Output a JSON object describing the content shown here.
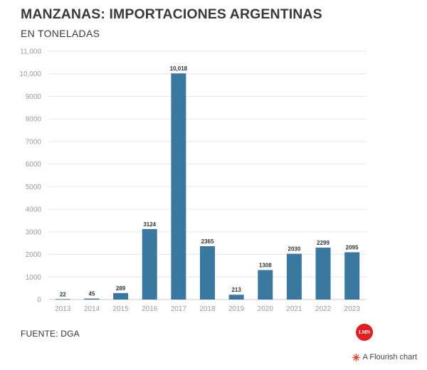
{
  "header": {
    "title": "MANZANAS: IMPORTACIONES ARGENTINAS",
    "subtitle": "EN TONELADAS"
  },
  "footer": {
    "source": "FUENTE: DGA",
    "logo_text": "LMN",
    "flourish_label": "A Flourish chart"
  },
  "colors": {
    "bar": "#3a78a0",
    "logo": "#e02020",
    "flourish_icon": "#e8412c"
  },
  "chart_data": {
    "type": "bar",
    "title": "MANZANAS: IMPORTACIONES ARGENTINAS",
    "subtitle": "EN TONELADAS",
    "xlabel": "",
    "ylabel": "",
    "categories": [
      "2013",
      "2014",
      "2015",
      "2016",
      "2017",
      "2018",
      "2019",
      "2020",
      "2021",
      "2022",
      "2023"
    ],
    "values": [
      22,
      45,
      289,
      3124,
      10018,
      2365,
      213,
      1308,
      2030,
      2299,
      2095
    ],
    "data_labels": [
      "22",
      "45",
      "289",
      "3124",
      "10,018",
      "2365",
      "213",
      "1308",
      "2030",
      "2299",
      "2095"
    ],
    "ylim": [
      0,
      11000
    ],
    "yticks": [
      0,
      1000,
      2000,
      3000,
      4000,
      5000,
      6000,
      7000,
      8000,
      9000,
      10000,
      11000
    ],
    "ytick_labels": [
      "0",
      "1000",
      "2000",
      "3000",
      "4000",
      "5000",
      "6000",
      "7000",
      "8000",
      "9000",
      "10,000",
      "11,000"
    ],
    "grid": true,
    "legend": "none"
  }
}
